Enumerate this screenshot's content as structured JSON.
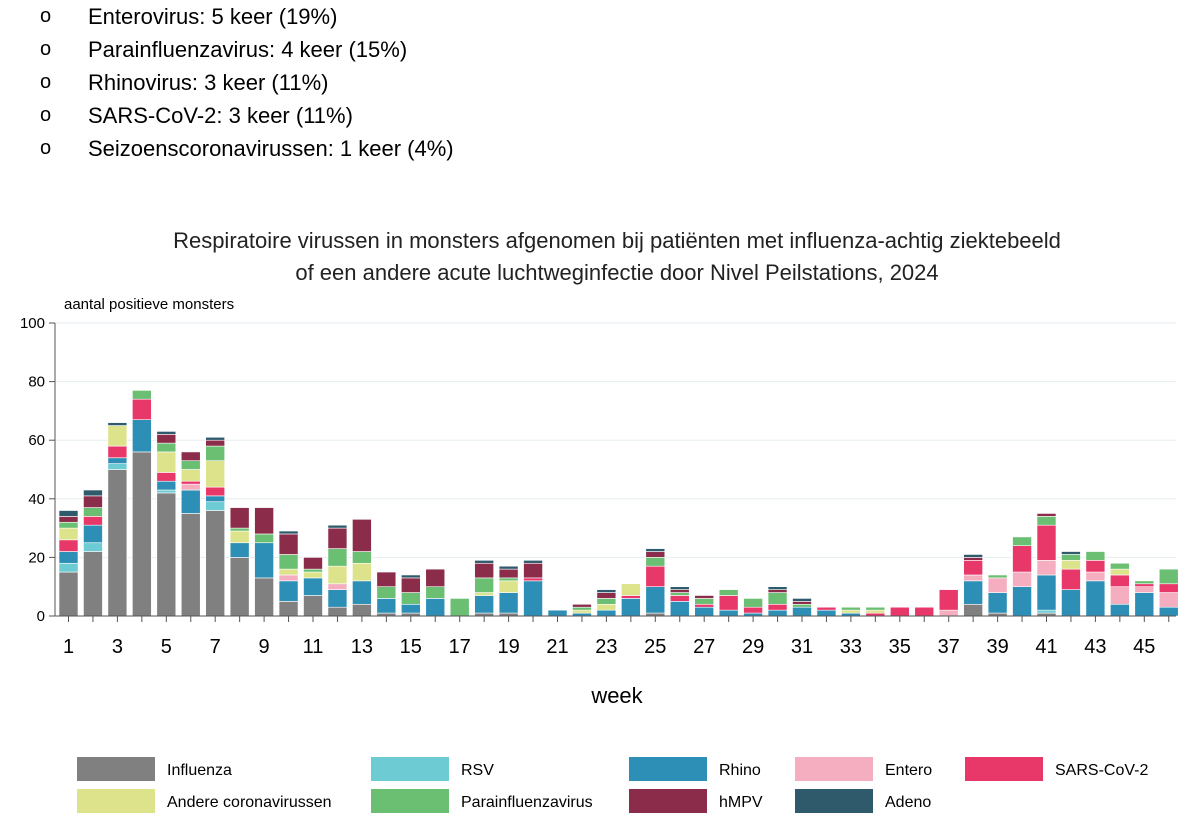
{
  "bullet_list": {
    "marker": "o",
    "items": [
      "Enterovirus: 5 keer (19%)",
      "Parainfluenzavirus: 4 keer (15%)",
      "Rhinovirus: 3 keer (11%)",
      "SARS-CoV-2: 3 keer (11%)",
      "Seizoenscoronavirussen: 1 keer (4%)"
    ]
  },
  "chart_data": {
    "type": "bar",
    "stacked": true,
    "title_lines": [
      "Respiratoire virussen in monsters afgenomen bij patiënten met influenza-achtig ziektebeeld",
      "of een andere acute luchtweginfectie door Nivel Peilstations, 2024"
    ],
    "ylabel": "aantal positieve monsters",
    "xlabel": "week",
    "ylim": [
      0,
      100
    ],
    "yticks": [
      0,
      20,
      40,
      60,
      80,
      100
    ],
    "grid": "horizontal",
    "legend_position": "bottom",
    "categories": [
      1,
      2,
      3,
      4,
      5,
      6,
      7,
      8,
      9,
      10,
      11,
      12,
      13,
      14,
      15,
      16,
      17,
      18,
      19,
      20,
      21,
      22,
      23,
      24,
      25,
      26,
      27,
      28,
      29,
      30,
      31,
      32,
      33,
      34,
      35,
      36,
      37,
      38,
      39,
      40,
      41,
      42,
      43,
      44,
      45,
      46
    ],
    "xtick_labels": [
      "1",
      "3",
      "5",
      "7",
      "9",
      "11",
      "13",
      "15",
      "17",
      "19",
      "21",
      "23",
      "25",
      "27",
      "29",
      "31",
      "33",
      "35",
      "37",
      "39",
      "41",
      "43",
      "45"
    ],
    "series": [
      {
        "name": "Influenza",
        "color": "#808080",
        "values": [
          15,
          22,
          50,
          56,
          42,
          35,
          36,
          20,
          13,
          5,
          7,
          3,
          4,
          1,
          1,
          0,
          0,
          1,
          1,
          0,
          0,
          0,
          0,
          0,
          1,
          0,
          0,
          0,
          0,
          0,
          0,
          0,
          0,
          0,
          0,
          0,
          0,
          4,
          1,
          0,
          1,
          0,
          0,
          0,
          0,
          0
        ]
      },
      {
        "name": "RSV",
        "color": "#6CCBD3",
        "values": [
          3,
          3,
          2,
          0,
          1,
          0,
          3,
          0,
          0,
          0,
          0,
          0,
          0,
          0,
          0,
          0,
          0,
          0,
          0,
          0,
          0,
          0,
          0,
          0,
          0,
          0,
          0,
          0,
          0,
          0,
          0,
          0,
          0,
          0,
          0,
          0,
          0,
          0,
          0,
          0,
          1,
          0,
          0,
          0,
          0,
          0
        ]
      },
      {
        "name": "Rhino",
        "color": "#2E8FB6",
        "values": [
          4,
          6,
          2,
          11,
          3,
          8,
          2,
          5,
          12,
          7,
          6,
          6,
          8,
          5,
          3,
          6,
          0,
          6,
          7,
          12,
          2,
          1,
          2,
          6,
          9,
          5,
          3,
          2,
          1,
          2,
          3,
          2,
          1,
          0,
          0,
          0,
          0,
          8,
          7,
          10,
          12,
          9,
          12,
          4,
          8,
          3
        ]
      },
      {
        "name": "Entero",
        "color": "#F4AEC0",
        "values": [
          0,
          0,
          0,
          0,
          0,
          2,
          0,
          0,
          0,
          2,
          0,
          2,
          0,
          0,
          0,
          0,
          0,
          0,
          0,
          0,
          0,
          0,
          0,
          0,
          0,
          0,
          0,
          0,
          0,
          0,
          0,
          0,
          0,
          0,
          0,
          0,
          2,
          2,
          5,
          5,
          5,
          0,
          3,
          6,
          2,
          5
        ]
      },
      {
        "name": "SARS-CoV-2",
        "color": "#E8386A",
        "values": [
          4,
          3,
          4,
          7,
          3,
          1,
          3,
          0,
          0,
          0,
          0,
          0,
          0,
          0,
          0,
          0,
          0,
          0,
          0,
          1,
          0,
          0,
          0,
          1,
          7,
          2,
          1,
          5,
          2,
          2,
          0,
          1,
          0,
          1,
          3,
          3,
          7,
          5,
          0,
          9,
          12,
          7,
          4,
          4,
          1,
          3
        ]
      },
      {
        "name": "Andere coronavirussen",
        "color": "#DDE38A",
        "values": [
          4,
          0,
          7,
          0,
          7,
          4,
          9,
          4,
          0,
          2,
          2,
          6,
          6,
          0,
          0,
          0,
          0,
          1,
          4,
          0,
          0,
          1,
          2,
          4,
          0,
          0,
          0,
          0,
          0,
          0,
          0,
          0,
          1,
          1,
          0,
          0,
          0,
          0,
          0,
          0,
          0,
          3,
          0,
          2,
          0,
          0
        ]
      },
      {
        "name": "Parainfluenzavirus",
        "color": "#6BBF73",
        "values": [
          2,
          3,
          0,
          3,
          3,
          3,
          5,
          1,
          3,
          5,
          1,
          6,
          4,
          4,
          4,
          4,
          6,
          5,
          1,
          0,
          0,
          1,
          2,
          0,
          3,
          1,
          2,
          2,
          3,
          4,
          1,
          0,
          1,
          1,
          0,
          0,
          0,
          0,
          1,
          3,
          3,
          2,
          3,
          2,
          1,
          5
        ]
      },
      {
        "name": "hMPV",
        "color": "#8B2C4A",
        "values": [
          2,
          4,
          0,
          0,
          3,
          3,
          2,
          7,
          9,
          7,
          4,
          7,
          11,
          5,
          5,
          6,
          0,
          5,
          3,
          5,
          0,
          1,
          2,
          0,
          2,
          1,
          1,
          0,
          0,
          1,
          1,
          0,
          0,
          0,
          0,
          0,
          0,
          1,
          0,
          0,
          1,
          0,
          0,
          0,
          0,
          0
        ]
      },
      {
        "name": "Adeno",
        "color": "#2E5A6B",
        "values": [
          2,
          2,
          1,
          0,
          1,
          0,
          1,
          0,
          0,
          1,
          0,
          1,
          0,
          0,
          1,
          0,
          0,
          1,
          1,
          1,
          0,
          0,
          1,
          0,
          1,
          1,
          0,
          0,
          0,
          1,
          1,
          0,
          0,
          0,
          0,
          0,
          0,
          1,
          0,
          0,
          0,
          1,
          0,
          0,
          0,
          0
        ]
      }
    ]
  }
}
